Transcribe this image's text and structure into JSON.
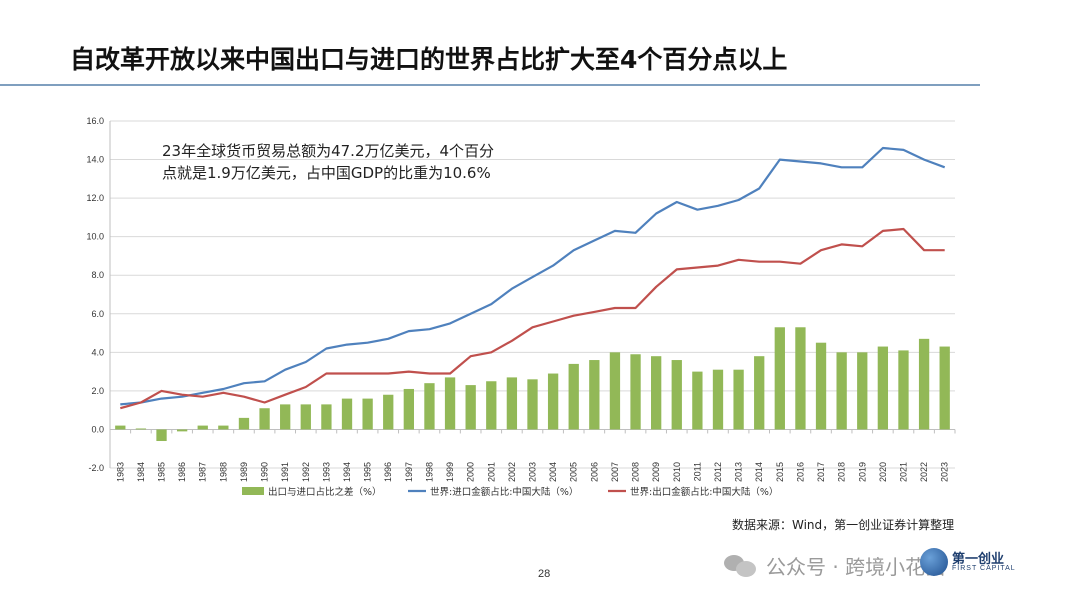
{
  "slide": {
    "title": "自改革开放以来中国出口与进口的世界占比扩大至4个百分点以上",
    "annotation_line1": "23年全球货币贸易总额为47.2万亿美元，4个百分",
    "annotation_line2": "点就是1.9万亿美元，占中国GDP的比重为10.6%",
    "source": "数据来源：Wind，第一创业证券计算整理",
    "page_number": "28",
    "watermark": "公众号 · 跨境小花猫",
    "logo_cn": "第一创业",
    "logo_en": "FIRST CAPITAL",
    "rule_color": "#7f9fbf"
  },
  "chart_data": {
    "type": "bar",
    "x": [
      "1983",
      "1984",
      "1985",
      "1986",
      "1987",
      "1988",
      "1989",
      "1990",
      "1991",
      "1992",
      "1993",
      "1994",
      "1995",
      "1996",
      "1997",
      "1998",
      "1999",
      "2000",
      "2001",
      "2002",
      "2003",
      "2004",
      "2005",
      "2006",
      "2007",
      "2008",
      "2009",
      "2010",
      "2011",
      "2012",
      "2013",
      "2014",
      "2015",
      "2016",
      "2017",
      "2018",
      "2019",
      "2020",
      "2021",
      "2022",
      "2023"
    ],
    "ylim": [
      -2.0,
      16.0
    ],
    "yticks": [
      "-2.0",
      "0.0",
      "2.0",
      "4.0",
      "6.0",
      "8.0",
      "10.0",
      "12.0",
      "14.0",
      "16.0"
    ],
    "ytick_values": [
      -2,
      0,
      2,
      4,
      6,
      8,
      10,
      12,
      14,
      16
    ],
    "grid": true,
    "legend_position": "bottom",
    "series": [
      {
        "name": "出口与进口占比之差（%）",
        "kind": "bar",
        "color": "#92b857",
        "values": [
          0.2,
          0.05,
          -0.6,
          -0.1,
          0.2,
          0.2,
          0.6,
          1.1,
          1.3,
          1.3,
          1.3,
          1.6,
          1.6,
          1.8,
          2.1,
          2.4,
          2.7,
          2.3,
          2.5,
          2.7,
          2.6,
          2.9,
          3.4,
          3.6,
          4.0,
          3.9,
          3.8,
          3.6,
          3.0,
          3.1,
          3.1,
          3.8,
          5.3,
          5.3,
          4.5,
          4.0,
          4.0,
          4.3,
          4.1,
          4.7,
          4.3
        ]
      },
      {
        "name": "世界:进口金额占比:中国大陆（%）",
        "kind": "line",
        "color": "#4f81bd",
        "values": [
          1.3,
          1.4,
          1.6,
          1.7,
          1.9,
          2.1,
          2.4,
          2.5,
          3.1,
          3.5,
          4.2,
          4.4,
          4.5,
          4.7,
          5.1,
          5.2,
          5.5,
          6.0,
          6.5,
          7.3,
          7.9,
          8.5,
          9.3,
          9.8,
          10.3,
          10.2,
          11.2,
          11.8,
          11.4,
          11.6,
          11.9,
          12.5,
          14.0,
          13.9,
          13.8,
          13.6,
          13.6,
          14.6,
          14.5,
          14.0,
          13.6
        ]
      },
      {
        "name": "世界:出口金额占比:中国大陆（%）",
        "kind": "line",
        "color": "#c0504d",
        "values": [
          1.1,
          1.4,
          2.0,
          1.8,
          1.7,
          1.9,
          1.7,
          1.4,
          1.8,
          2.2,
          2.9,
          2.9,
          2.9,
          2.9,
          3.0,
          2.9,
          2.9,
          3.8,
          4.0,
          4.6,
          5.3,
          5.6,
          5.9,
          6.1,
          6.3,
          6.3,
          7.4,
          8.3,
          8.4,
          8.5,
          8.8,
          8.7,
          8.7,
          8.6,
          9.3,
          9.6,
          9.5,
          10.3,
          10.4,
          9.3,
          9.3
        ]
      }
    ]
  }
}
